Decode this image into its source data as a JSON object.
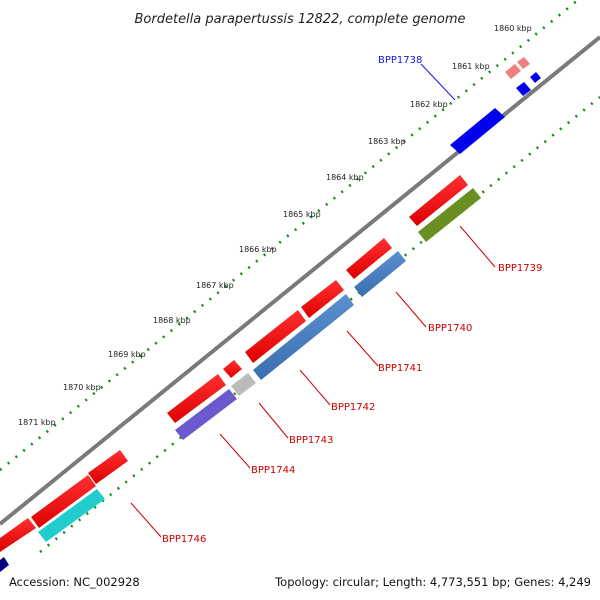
{
  "map": {
    "title": "Bordetella parapertussis 12822, complete genome",
    "accession": "Accession: NC_002928",
    "summary": "Topology: circular; Length: 4,773,551 bp; Genes: 4,249"
  },
  "ticks": [
    "1860 kbp",
    "1861 kbp",
    "1862 kbp",
    "1863 kbp",
    "1864 kbp",
    "1865 kbp",
    "1866 kbp",
    "1867 kbp",
    "1868 kbp",
    "1869 kbp",
    "1870 kbp",
    "1871 kbp"
  ],
  "genes": [
    {
      "id": "BPP1738",
      "color": "#1a1ad4"
    },
    {
      "id": "BPP1739",
      "color": "#cc0000"
    },
    {
      "id": "BPP1740",
      "color": "#cc0000"
    },
    {
      "id": "BPP1741",
      "color": "#cc0000"
    },
    {
      "id": "BPP1742",
      "color": "#cc0000"
    },
    {
      "id": "BPP1743",
      "color": "#cc0000"
    },
    {
      "id": "BPP1744",
      "color": "#cc0000"
    },
    {
      "id": "BPP1746",
      "color": "#cc0000"
    }
  ],
  "colors": {
    "backbone": "#7a7a7a",
    "dotted_track": "#1a8a1a",
    "forward_cds": "#ee1111",
    "reverse_cds_blue": "#4a7fbf",
    "cyan": "#22cccc",
    "olive": "#6b8e23",
    "purple": "#6a5acd",
    "grey": "#bbbbbb",
    "pink": "#f08080",
    "blue": "#0000ee",
    "navy": "#000080"
  }
}
